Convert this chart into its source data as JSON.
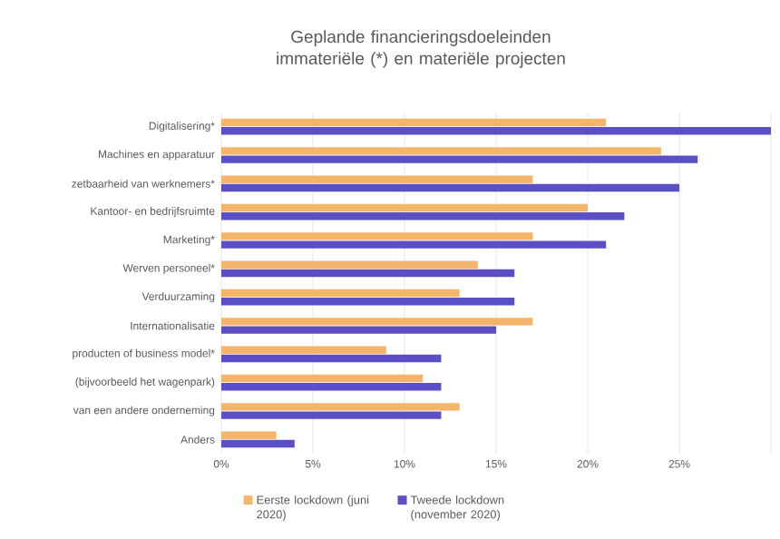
{
  "chart_data": {
    "type": "bar",
    "orientation": "horizontal",
    "title": "Geplande financieringsdoeleinden immateriële (*) en materiële projecten",
    "categories": [
      "Digitalisering*",
      "Machines en apparatuur",
      "zetbaarheid van werknemers*",
      "Kantoor- en bedrijfsruimte",
      "Marketing*",
      "Werven personeel*",
      "Verduurzaming",
      "Internationalisatie",
      "producten of business model*",
      "(bijvoorbeeld het wagenpark)",
      "van een andere onderneming",
      "Anders"
    ],
    "series": [
      {
        "name": "Eerste lockdown (juni 2020)",
        "color": "#f4b56b",
        "values": [
          21,
          24,
          17,
          20,
          17,
          14,
          13,
          17,
          9,
          11,
          13,
          3
        ]
      },
      {
        "name": "Tweede lockdown (november 2020)",
        "color": "#5b4fc6",
        "values": [
          30,
          26,
          25,
          22,
          21,
          16,
          16,
          15,
          12,
          12,
          12,
          4
        ]
      }
    ],
    "xlim": [
      0,
      30
    ],
    "xticks": [
      {
        "value": 0,
        "label": "0%"
      },
      {
        "value": 5,
        "label": "5%"
      },
      {
        "value": 10,
        "label": "10%"
      },
      {
        "value": 15,
        "label": "15%"
      },
      {
        "value": 20,
        "label": "20%"
      },
      {
        "value": 25,
        "label": "25%"
      },
      {
        "value": 30,
        "label": null
      }
    ],
    "grid": "x",
    "legend": "bottom"
  }
}
